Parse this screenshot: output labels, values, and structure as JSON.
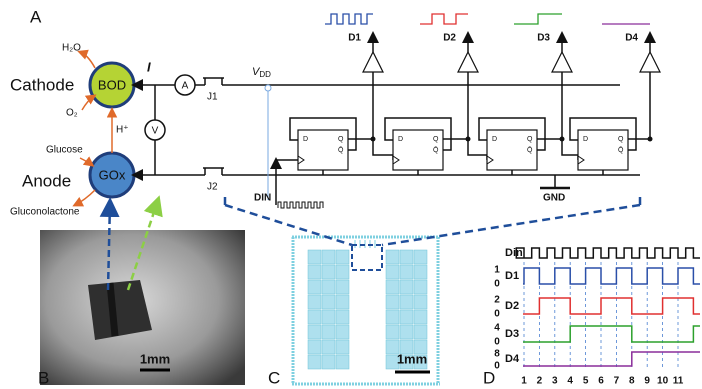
{
  "panel_a": {
    "label": "A",
    "cathode": "Cathode",
    "anode": "Anode",
    "bod": "BOD",
    "gox": "GOx",
    "h2o": "H₂O",
    "o2": "O₂",
    "h_plus": "H⁺",
    "glucose": "Glucose",
    "gluconolactone": "Gluconolactone",
    "current": "I",
    "ammeter": "A",
    "voltmeter": "V",
    "j1": "J1",
    "j2": "J2",
    "vdd": {
      "v": "V",
      "sub": "DD"
    },
    "din": "DIN",
    "gnd": "GND",
    "outputs": [
      "D1",
      "D2",
      "D3",
      "D4"
    ],
    "ff": {
      "d": "D",
      "q": "Q",
      "qbar": "Q̄"
    }
  },
  "panel_b": {
    "label": "B",
    "scale": "1mm"
  },
  "panel_c": {
    "label": "C",
    "scale": "1mm"
  },
  "panel_d": {
    "label": "D",
    "signals": [
      {
        "name": "Din"
      },
      {
        "name": "D1",
        "high": "1",
        "low": "0"
      },
      {
        "name": "D2",
        "high": "2",
        "low": "0"
      },
      {
        "name": "D3",
        "high": "4",
        "low": "0"
      },
      {
        "name": "D4",
        "high": "8",
        "low": "0"
      }
    ],
    "ticks": [
      "1",
      "2",
      "3",
      "4",
      "5",
      "6",
      "7",
      "8",
      "9",
      "10",
      "11"
    ]
  }
}
